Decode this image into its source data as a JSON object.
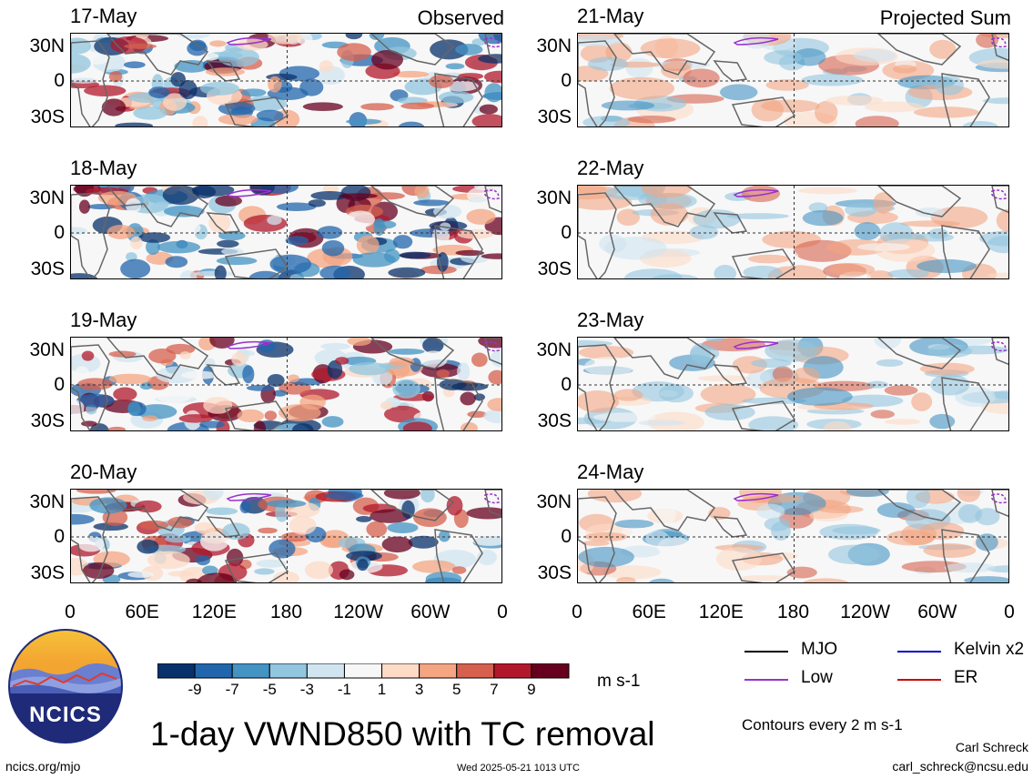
{
  "title": "1-day VWND850 with TC removal",
  "columns": [
    {
      "header": "Observed",
      "dates": [
        "17-May",
        "18-May",
        "19-May",
        "20-May"
      ]
    },
    {
      "header": "Projected Sum",
      "dates": [
        "21-May",
        "22-May",
        "23-May",
        "24-May"
      ]
    }
  ],
  "lat_labels": [
    "30N",
    "0",
    "30S"
  ],
  "lon_labels": [
    "0",
    "60E",
    "120E",
    "180",
    "120W",
    "60W",
    "0"
  ],
  "colorbar": {
    "colors": [
      "#08306b",
      "#2166ac",
      "#4393c3",
      "#92c5de",
      "#d1e5f0",
      "#f7f7f7",
      "#fddbc7",
      "#f4a582",
      "#d6604d",
      "#b2182b",
      "#67001f"
    ],
    "labels": [
      "-9",
      "-7",
      "-5",
      "-3",
      "-1",
      "1",
      "3",
      "5",
      "7",
      "9"
    ],
    "unit": "m s-1"
  },
  "legend": [
    {
      "label": "MJO",
      "color": "#000000"
    },
    {
      "label": "Kelvin x2",
      "color": "#0000cc"
    },
    {
      "label": "Low",
      "color": "#9932cc"
    },
    {
      "label": "ER",
      "color": "#cc0000"
    }
  ],
  "contours_note": "Contours every 2 m s-1",
  "logo_text": "NCICS",
  "footer": {
    "left": "ncics.org/mjo",
    "center": "Wed 2025-05-21 1013 UTC",
    "author": "Carl Schreck",
    "email": "carl_schreck@ncsu.edu"
  }
}
